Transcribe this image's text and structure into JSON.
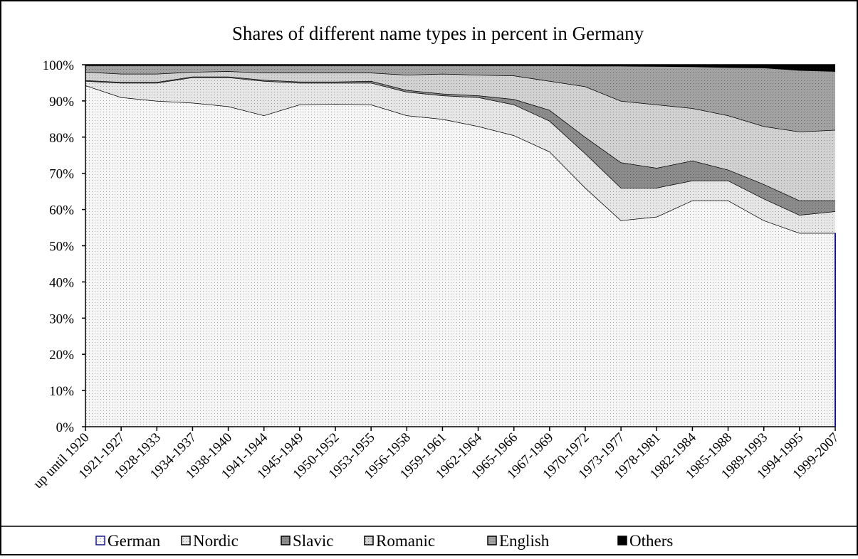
{
  "chart_data": {
    "type": "stacked-area",
    "title": "Shares of different name types in percent in Germany",
    "categories": [
      "up until 1920",
      "1921-1927",
      "1928-1933",
      "1934-1937",
      "1938-1940",
      "1941-1944",
      "1945-1949",
      "1950-1952",
      "1953-1955",
      "1956-1958",
      "1959-1961",
      "1962-1964",
      "1965-1966",
      "1967-1969",
      "1970-1972",
      "1973-1977",
      "1978-1981",
      "1982-1984",
      "1985-1988",
      "1989-1993",
      "1994-1995",
      "1999-2007"
    ],
    "series": [
      {
        "name": "German",
        "color": "#f6f6f6",
        "values": [
          94.3,
          91,
          90,
          89.5,
          88.5,
          86,
          89,
          89.2,
          89,
          86,
          85,
          83,
          80.5,
          76,
          66,
          57,
          58,
          62.5,
          62.5,
          57,
          53.5,
          53.5
        ]
      },
      {
        "name": "Nordic",
        "color": "#e6e6e6",
        "values": [
          1.2,
          4,
          5,
          7,
          8,
          9.5,
          6,
          5.8,
          6,
          6.5,
          6.5,
          8,
          8.5,
          8.5,
          9.5,
          9,
          8,
          5.5,
          5.5,
          6,
          5,
          6
        ]
      },
      {
        "name": "Slavic",
        "color": "#8c8c8c",
        "values": [
          0.2,
          0.2,
          0.2,
          0.2,
          0.2,
          0.3,
          0.3,
          0.3,
          0.5,
          0.5,
          0.5,
          0.5,
          1.5,
          3,
          4.5,
          7,
          5.5,
          5.5,
          3,
          4,
          4,
          3
        ]
      },
      {
        "name": "Romanic",
        "color": "#d2d2d2",
        "values": [
          2.3,
          2.3,
          2.3,
          1.3,
          1.5,
          2,
          2.5,
          2.5,
          2.3,
          4.2,
          5.5,
          5.7,
          6.5,
          8,
          14,
          17,
          17.5,
          14.5,
          15,
          16,
          19,
          19.5
        ]
      },
      {
        "name": "English",
        "color": "#a2a2a2",
        "values": [
          1.8,
          2.3,
          2.3,
          1.8,
          1.6,
          2,
          2,
          2,
          2,
          2.6,
          2.3,
          2.6,
          2.8,
          4.3,
          5.7,
          9.7,
          10.6,
          11.5,
          13.3,
          16.2,
          17,
          16.2
        ]
      },
      {
        "name": "Others",
        "color": "#000000",
        "values": [
          0.2,
          0.2,
          0.2,
          0.2,
          0.2,
          0.2,
          0.2,
          0.2,
          0.2,
          0.2,
          0.2,
          0.2,
          0.2,
          0.2,
          0.3,
          0.3,
          0.4,
          0.5,
          0.7,
          0.8,
          1.5,
          1.8
        ]
      }
    ],
    "ylim": [
      0,
      100
    ],
    "yticks": [
      {
        "value": 0,
        "label": "0%"
      },
      {
        "value": 10,
        "label": "10%"
      },
      {
        "value": 20,
        "label": "20%"
      },
      {
        "value": 30,
        "label": "30%"
      },
      {
        "value": 40,
        "label": "40%"
      },
      {
        "value": 50,
        "label": "50%"
      },
      {
        "value": 60,
        "label": "60%"
      },
      {
        "value": 70,
        "label": "70%"
      },
      {
        "value": 80,
        "label": "80%"
      },
      {
        "value": 90,
        "label": "90%"
      },
      {
        "value": 100,
        "label": "100%"
      }
    ]
  }
}
